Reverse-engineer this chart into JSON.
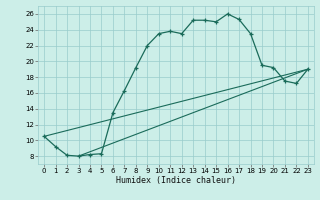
{
  "xlabel": "Humidex (Indice chaleur)",
  "bg_color": "#cceee8",
  "grid_color": "#99cccc",
  "line_color": "#1a6b5a",
  "xlim": [
    -0.5,
    23.5
  ],
  "ylim": [
    7,
    27
  ],
  "xticks": [
    0,
    1,
    2,
    3,
    4,
    5,
    6,
    7,
    8,
    9,
    10,
    11,
    12,
    13,
    14,
    15,
    16,
    17,
    18,
    19,
    20,
    21,
    22,
    23
  ],
  "yticks": [
    8,
    10,
    12,
    14,
    16,
    18,
    20,
    22,
    24,
    26
  ],
  "main_x": [
    0,
    1,
    2,
    3,
    4,
    5,
    6,
    7,
    8,
    9,
    10,
    11,
    12,
    13,
    14,
    15,
    16,
    17,
    18,
    19,
    20,
    21,
    22,
    23
  ],
  "main_y": [
    10.5,
    9.2,
    8.1,
    8.0,
    8.2,
    8.3,
    13.5,
    16.3,
    19.2,
    22.0,
    23.5,
    23.8,
    23.5,
    25.2,
    25.2,
    25.0,
    26.0,
    25.3,
    23.5,
    19.5,
    19.2,
    17.5,
    17.2,
    19.0
  ],
  "line2_x": [
    0,
    23
  ],
  "line2_y": [
    10.5,
    19.0
  ],
  "line3_x": [
    3,
    23
  ],
  "line3_y": [
    8.0,
    19.0
  ]
}
